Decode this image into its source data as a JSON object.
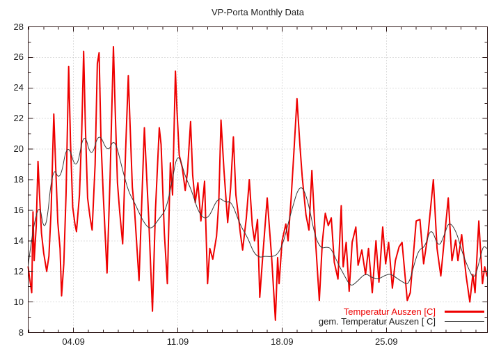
{
  "window_title": "VP-Porta Monthly Data",
  "chart_data": {
    "type": "line",
    "title": "VP-Porta Monthly Data",
    "grid": "dotted lines at major ticks, both axes",
    "legend_position": "inside bottom-right",
    "x_axis": {
      "label": "",
      "unit": "date (day.month, September)",
      "range": [
        0.96,
        31.78
      ],
      "major_ticks": [
        {
          "value": 4,
          "label": "04.09"
        },
        {
          "value": 11,
          "label": "11.09"
        },
        {
          "value": 18,
          "label": "18.09"
        },
        {
          "value": 25,
          "label": "25.09"
        }
      ],
      "minor_tick_step": 1
    },
    "y_axis": {
      "label": "",
      "unit": "C",
      "range": [
        8,
        28
      ],
      "major_ticks": [
        8,
        10,
        12,
        14,
        16,
        18,
        20,
        22,
        24,
        26,
        28
      ],
      "minor_tick_step": 1
    },
    "style": {
      "border_color": "#2a1414",
      "grid_color": "#bbbbbb",
      "text_color": "#1c1c1c",
      "background": "#ffffff"
    },
    "series": [
      {
        "name": "Temperatur Auszen [C]",
        "color": "#ee0000",
        "line_width": 2,
        "smooth": false,
        "points": [
          [
            0.96,
            12.3
          ],
          [
            1.05,
            11.6
          ],
          [
            1.2,
            10.6
          ],
          [
            1.28,
            15.9
          ],
          [
            1.36,
            12.7
          ],
          [
            1.5,
            15.0
          ],
          [
            1.62,
            19.2
          ],
          [
            1.72,
            17.0
          ],
          [
            1.85,
            14.5
          ],
          [
            2.0,
            13.2
          ],
          [
            2.2,
            12.0
          ],
          [
            2.35,
            13.0
          ],
          [
            2.5,
            16.0
          ],
          [
            2.68,
            22.3
          ],
          [
            2.8,
            19.0
          ],
          [
            2.95,
            15.2
          ],
          [
            3.1,
            13.5
          ],
          [
            3.2,
            10.4
          ],
          [
            3.35,
            12.5
          ],
          [
            3.5,
            17.0
          ],
          [
            3.68,
            25.4
          ],
          [
            3.8,
            20.5
          ],
          [
            3.95,
            16.2
          ],
          [
            4.1,
            15.1
          ],
          [
            4.2,
            14.6
          ],
          [
            4.4,
            17.0
          ],
          [
            4.55,
            21.0
          ],
          [
            4.68,
            26.4
          ],
          [
            4.8,
            21.5
          ],
          [
            4.95,
            16.8
          ],
          [
            5.1,
            15.6
          ],
          [
            5.25,
            14.7
          ],
          [
            5.45,
            19.0
          ],
          [
            5.6,
            25.6
          ],
          [
            5.72,
            26.3
          ],
          [
            5.85,
            20.5
          ],
          [
            6.0,
            17.0
          ],
          [
            6.25,
            11.9
          ],
          [
            6.45,
            18.0
          ],
          [
            6.68,
            26.7
          ],
          [
            6.8,
            22.5
          ],
          [
            6.95,
            17.8
          ],
          [
            7.1,
            15.9
          ],
          [
            7.3,
            13.8
          ],
          [
            7.5,
            20.0
          ],
          [
            7.68,
            24.8
          ],
          [
            7.8,
            21.5
          ],
          [
            7.95,
            17.5
          ],
          [
            8.1,
            16.0
          ],
          [
            8.4,
            11.4
          ],
          [
            8.6,
            17.0
          ],
          [
            8.76,
            21.4
          ],
          [
            8.9,
            18.5
          ],
          [
            9.05,
            15.5
          ],
          [
            9.3,
            9.4
          ],
          [
            9.5,
            16.0
          ],
          [
            9.76,
            21.4
          ],
          [
            9.88,
            20.3
          ],
          [
            10.1,
            14.5
          ],
          [
            10.3,
            11.2
          ],
          [
            10.5,
            19.1
          ],
          [
            10.65,
            17.0
          ],
          [
            10.84,
            25.1
          ],
          [
            10.95,
            22.5
          ],
          [
            11.1,
            19.6
          ],
          [
            11.3,
            18.8
          ],
          [
            11.5,
            17.3
          ],
          [
            11.65,
            18.5
          ],
          [
            11.86,
            21.8
          ],
          [
            12.0,
            18.3
          ],
          [
            12.17,
            16.5
          ],
          [
            12.35,
            17.8
          ],
          [
            12.55,
            15.3
          ],
          [
            12.8,
            17.9
          ],
          [
            13.0,
            11.2
          ],
          [
            13.15,
            13.5
          ],
          [
            13.35,
            12.8
          ],
          [
            13.6,
            14.3
          ],
          [
            13.75,
            16.5
          ],
          [
            13.9,
            21.9
          ],
          [
            14.1,
            18.6
          ],
          [
            14.35,
            15.2
          ],
          [
            14.55,
            17.5
          ],
          [
            14.73,
            20.8
          ],
          [
            14.9,
            17.0
          ],
          [
            15.05,
            15.8
          ],
          [
            15.2,
            14.5
          ],
          [
            15.35,
            13.4
          ],
          [
            15.6,
            15.5
          ],
          [
            15.8,
            18.0
          ],
          [
            16.0,
            15.0
          ],
          [
            16.15,
            14.0
          ],
          [
            16.35,
            15.4
          ],
          [
            16.5,
            10.3
          ],
          [
            16.7,
            13.0
          ],
          [
            17.0,
            16.8
          ],
          [
            17.3,
            12.9
          ],
          [
            17.55,
            8.8
          ],
          [
            17.7,
            12.9
          ],
          [
            17.8,
            11.2
          ],
          [
            18.0,
            14.0
          ],
          [
            18.25,
            15.1
          ],
          [
            18.4,
            14.0
          ],
          [
            18.6,
            16.7
          ],
          [
            18.8,
            19.9
          ],
          [
            19.0,
            23.3
          ],
          [
            19.2,
            20.2
          ],
          [
            19.35,
            18.2
          ],
          [
            19.6,
            15.7
          ],
          [
            19.8,
            14.7
          ],
          [
            20.0,
            18.6
          ],
          [
            20.25,
            13.9
          ],
          [
            20.5,
            10.1
          ],
          [
            20.7,
            13.9
          ],
          [
            20.9,
            15.8
          ],
          [
            21.1,
            15.0
          ],
          [
            21.3,
            15.5
          ],
          [
            21.5,
            12.6
          ],
          [
            21.75,
            11.5
          ],
          [
            21.97,
            16.3
          ],
          [
            22.1,
            12.3
          ],
          [
            22.3,
            13.9
          ],
          [
            22.5,
            10.7
          ],
          [
            22.7,
            13.9
          ],
          [
            22.95,
            14.9
          ],
          [
            23.1,
            12.4
          ],
          [
            23.35,
            13.4
          ],
          [
            23.6,
            11.8
          ],
          [
            23.8,
            13.5
          ],
          [
            24.05,
            10.6
          ],
          [
            24.3,
            14.0
          ],
          [
            24.5,
            11.3
          ],
          [
            24.75,
            14.9
          ],
          [
            24.95,
            12.5
          ],
          [
            25.15,
            13.9
          ],
          [
            25.4,
            10.9
          ],
          [
            25.6,
            12.7
          ],
          [
            25.85,
            13.6
          ],
          [
            26.05,
            13.9
          ],
          [
            26.4,
            10.1
          ],
          [
            26.6,
            10.6
          ],
          [
            27.0,
            15.3
          ],
          [
            27.25,
            15.4
          ],
          [
            27.5,
            12.5
          ],
          [
            27.8,
            14.5
          ],
          [
            28.15,
            18.0
          ],
          [
            28.4,
            13.5
          ],
          [
            28.65,
            11.7
          ],
          [
            29.15,
            16.8
          ],
          [
            29.4,
            12.7
          ],
          [
            29.65,
            14.05
          ],
          [
            29.8,
            12.7
          ],
          [
            30.05,
            14.4
          ],
          [
            30.35,
            11.7
          ],
          [
            30.6,
            10.0
          ],
          [
            30.8,
            11.8
          ],
          [
            30.95,
            10.6
          ],
          [
            31.2,
            15.3
          ],
          [
            31.45,
            11.2
          ],
          [
            31.6,
            12.3
          ],
          [
            31.75,
            11.7
          ]
        ]
      },
      {
        "name": "gem. Temperatur Auszen [ C]",
        "color": "#383838",
        "line_width": 1,
        "smooth": true,
        "points": [
          [
            0.96,
            12.4
          ],
          [
            1.6,
            17.3
          ],
          [
            2.1,
            14.0
          ],
          [
            2.6,
            19.0
          ],
          [
            3.1,
            17.8
          ],
          [
            3.6,
            20.6
          ],
          [
            4.2,
            18.4
          ],
          [
            4.7,
            21.3
          ],
          [
            5.2,
            19.3
          ],
          [
            5.7,
            21.2
          ],
          [
            6.3,
            19.7
          ],
          [
            6.75,
            20.8
          ],
          [
            7.3,
            18.6
          ],
          [
            7.7,
            17.2
          ],
          [
            8.1,
            16.5
          ],
          [
            8.7,
            15.2
          ],
          [
            9.2,
            14.7
          ],
          [
            9.7,
            15.4
          ],
          [
            10.2,
            16.0
          ],
          [
            10.6,
            17.8
          ],
          [
            11.0,
            19.9
          ],
          [
            11.5,
            18.2
          ],
          [
            11.93,
            17.3
          ],
          [
            12.4,
            15.8
          ],
          [
            13.0,
            15.3
          ],
          [
            13.7,
            16.9
          ],
          [
            14.2,
            16.5
          ],
          [
            14.6,
            16.6
          ],
          [
            15.2,
            15.0
          ],
          [
            15.7,
            14.2
          ],
          [
            16.1,
            13.2
          ],
          [
            16.5,
            12.9
          ],
          [
            16.8,
            13.0
          ],
          [
            17.3,
            12.95
          ],
          [
            17.7,
            13.1
          ],
          [
            18.1,
            13.9
          ],
          [
            18.6,
            15.9
          ],
          [
            19.2,
            17.8
          ],
          [
            19.7,
            16.8
          ],
          [
            20.2,
            14.3
          ],
          [
            20.6,
            13.5
          ],
          [
            21.0,
            13.6
          ],
          [
            21.3,
            13.5
          ],
          [
            21.8,
            12.4
          ],
          [
            22.2,
            11.7
          ],
          [
            22.6,
            11.0
          ],
          [
            23.0,
            11.3
          ],
          [
            23.6,
            11.9
          ],
          [
            24.0,
            11.6
          ],
          [
            24.5,
            11.5
          ],
          [
            24.9,
            11.75
          ],
          [
            25.3,
            11.85
          ],
          [
            25.7,
            11.55
          ],
          [
            26.1,
            11.3
          ],
          [
            26.5,
            11.1
          ],
          [
            26.9,
            12.6
          ],
          [
            27.2,
            13.45
          ],
          [
            27.6,
            13.6
          ],
          [
            28.0,
            14.95
          ],
          [
            28.5,
            13.5
          ],
          [
            28.9,
            14.4
          ],
          [
            29.2,
            15.3
          ],
          [
            29.7,
            14.6
          ],
          [
            30.1,
            13.2
          ],
          [
            30.5,
            12.2
          ],
          [
            30.9,
            11.4
          ],
          [
            31.3,
            12.9
          ],
          [
            31.5,
            13.7
          ],
          [
            31.75,
            13.5
          ]
        ]
      }
    ]
  }
}
